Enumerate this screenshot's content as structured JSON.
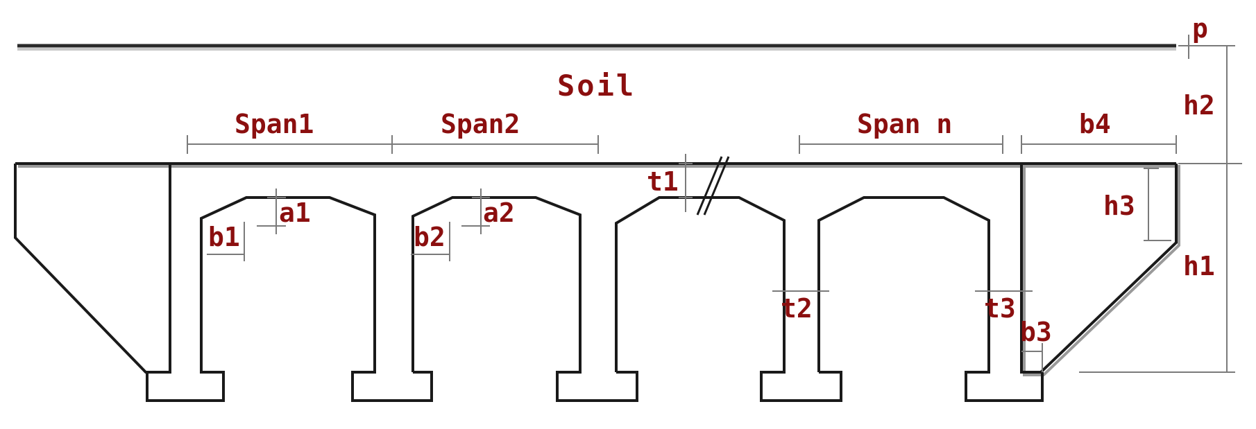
{
  "diagram": {
    "labels": {
      "p": "p",
      "soil": "Soil",
      "h2": "h2",
      "h1": "h1",
      "h3": "h3",
      "span1": "Span1",
      "span2": "Span2",
      "span_n": "Span n",
      "b4": "b4",
      "t1": "t1",
      "a1": "a1",
      "a2": "a2",
      "b1": "b1",
      "b2": "b2",
      "t2": "t2",
      "t3": "t3",
      "b3": "b3"
    },
    "colors": {
      "label": "#8b0f0f",
      "structure": "#1a1a1a",
      "dimension": "#7a7a7a",
      "background": "#ffffff"
    }
  }
}
